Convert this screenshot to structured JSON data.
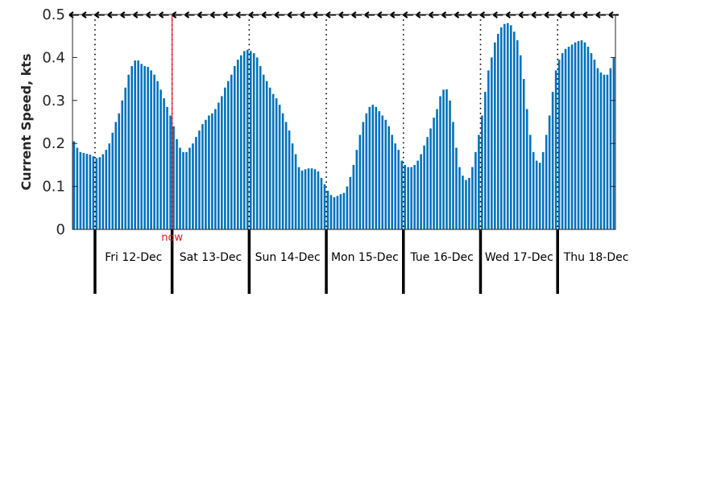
{
  "chart_data": {
    "type": "bar",
    "title": "",
    "xlabel": "",
    "ylabel": "Current Speed, kts",
    "ylim": [
      0,
      0.5
    ],
    "yticks": [
      "0",
      "0.1",
      "0.2",
      "0.3",
      "0.4",
      "0.5"
    ],
    "grid": false,
    "bar_color": "#0072bd",
    "now_color": "#e41a1c",
    "now_label": "now",
    "day_labels": [
      "Fri 12-Dec",
      "Sat 13-Dec",
      "Sun 14-Dec",
      "Mon 15-Dec",
      "Tue 16-Dec",
      "Wed 17-Dec",
      "Thu 18-Dec"
    ],
    "values": [
      0.205,
      0.19,
      0.18,
      0.178,
      0.176,
      0.174,
      0.17,
      0.166,
      0.168,
      0.175,
      0.185,
      0.2,
      0.225,
      0.25,
      0.27,
      0.3,
      0.33,
      0.36,
      0.38,
      0.393,
      0.393,
      0.385,
      0.38,
      0.378,
      0.37,
      0.36,
      0.345,
      0.325,
      0.305,
      0.285,
      0.265,
      0.24,
      0.21,
      0.19,
      0.18,
      0.18,
      0.19,
      0.2,
      0.215,
      0.23,
      0.245,
      0.255,
      0.265,
      0.27,
      0.28,
      0.295,
      0.31,
      0.33,
      0.345,
      0.36,
      0.38,
      0.395,
      0.405,
      0.415,
      0.418,
      0.415,
      0.41,
      0.4,
      0.38,
      0.36,
      0.345,
      0.33,
      0.315,
      0.305,
      0.29,
      0.27,
      0.25,
      0.23,
      0.2,
      0.175,
      0.145,
      0.137,
      0.14,
      0.142,
      0.142,
      0.14,
      0.135,
      0.12,
      0.105,
      0.09,
      0.08,
      0.075,
      0.078,
      0.082,
      0.085,
      0.1,
      0.122,
      0.15,
      0.185,
      0.22,
      0.25,
      0.27,
      0.285,
      0.29,
      0.285,
      0.275,
      0.265,
      0.255,
      0.24,
      0.22,
      0.2,
      0.185,
      0.16,
      0.15,
      0.145,
      0.145,
      0.15,
      0.16,
      0.175,
      0.195,
      0.215,
      0.235,
      0.26,
      0.28,
      0.31,
      0.325,
      0.326,
      0.3,
      0.25,
      0.19,
      0.145,
      0.125,
      0.115,
      0.12,
      0.145,
      0.18,
      0.22,
      0.265,
      0.32,
      0.37,
      0.4,
      0.435,
      0.455,
      0.47,
      0.478,
      0.48,
      0.475,
      0.46,
      0.44,
      0.405,
      0.35,
      0.28,
      0.22,
      0.18,
      0.16,
      0.155,
      0.18,
      0.22,
      0.265,
      0.32,
      0.37,
      0.395,
      0.41,
      0.42,
      0.425,
      0.43,
      0.435,
      0.438,
      0.44,
      0.435,
      0.425,
      0.41,
      0.395,
      0.375,
      0.365,
      0.36,
      0.36,
      0.375,
      0.4
    ]
  }
}
